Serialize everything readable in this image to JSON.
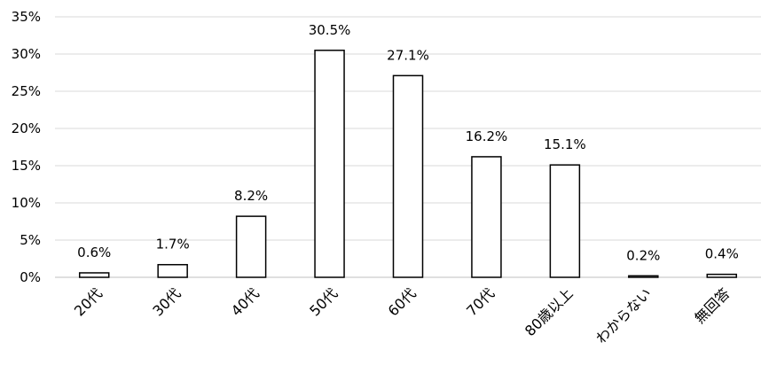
{
  "chart_data": {
    "type": "bar",
    "categories": [
      "20代",
      "30代",
      "40代",
      "50代",
      "60代",
      "70代",
      "80歳以上",
      "わからない",
      "無回答"
    ],
    "values": [
      0.6,
      1.7,
      8.2,
      30.5,
      27.1,
      16.2,
      15.1,
      0.2,
      0.4
    ],
    "data_labels": [
      "0.6%",
      "1.7%",
      "8.2%",
      "30.5%",
      "27.1%",
      "16.2%",
      "15.1%",
      "0.2%",
      "0.4%"
    ],
    "y_ticks": [
      "0%",
      "5%",
      "10%",
      "15%",
      "20%",
      "25%",
      "30%",
      "35%"
    ],
    "ylim": [
      0,
      35
    ],
    "grid": true,
    "bar_fill": "#ffffff",
    "bar_stroke": "#000000",
    "grid_color": "#d9d9d9"
  }
}
